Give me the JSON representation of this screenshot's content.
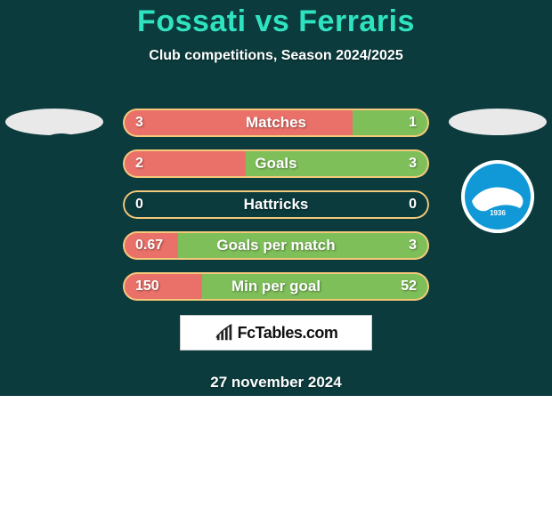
{
  "card": {
    "background_color": "#0b3b3d",
    "text_color": "#ffffff",
    "title": "Fossati vs Ferraris",
    "title_color": "#2fe3c0",
    "subtitle": "Club competitions, Season 2024/2025",
    "date": "27 november 2024"
  },
  "avatars": {
    "left_color": "#e9e9e9",
    "right_color": "#e9e9e9",
    "crest_left_bg": "#0b3b3d",
    "crest_right_bg": "#ffffff",
    "crest_right_primary": "#1099d6",
    "crest_right_year": "1936"
  },
  "bars": {
    "left_color": "#e9716a",
    "right_color": "#7fbf5a",
    "border_color": "#f4c97a",
    "text_color": "#ffffff",
    "rows": [
      {
        "label": "Matches",
        "left": "3",
        "right": "1",
        "left_pct": 75,
        "right_pct": 25
      },
      {
        "label": "Goals",
        "left": "2",
        "right": "3",
        "left_pct": 40,
        "right_pct": 60
      },
      {
        "label": "Hattricks",
        "left": "0",
        "right": "0",
        "left_pct": 0,
        "right_pct": 0
      },
      {
        "label": "Goals per match",
        "left": "0.67",
        "right": "3",
        "left_pct": 18,
        "right_pct": 82
      },
      {
        "label": "Min per goal",
        "left": "150",
        "right": "52",
        "left_pct": 26,
        "right_pct": 74
      }
    ]
  },
  "watermark": {
    "text": "FcTables.com",
    "icon_color": "#222222"
  }
}
